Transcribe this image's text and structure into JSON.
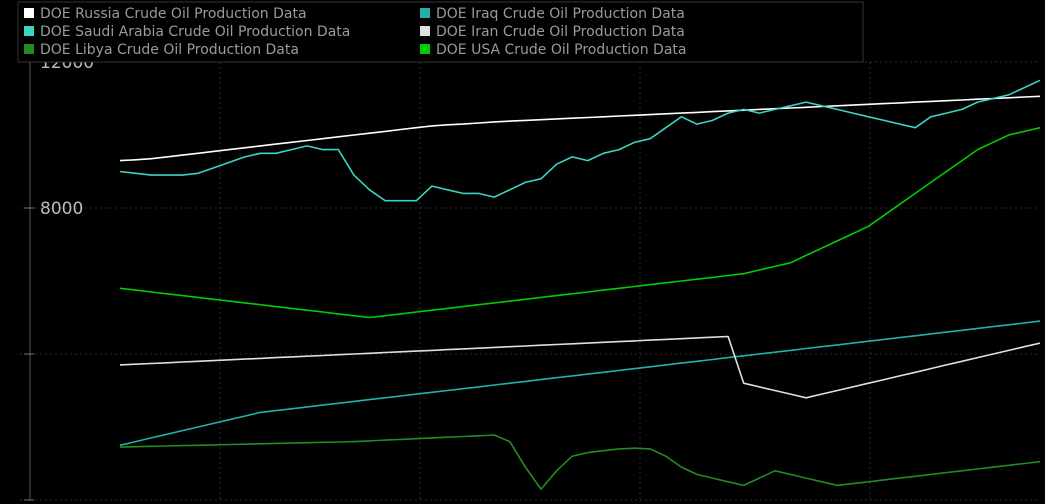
{
  "chart_data": {
    "type": "line",
    "legend_position": "top-left",
    "grid": true,
    "title": "",
    "xlabel": "",
    "ylabel": "",
    "ylim": [
      0,
      12000
    ],
    "y_ticks": [
      0,
      4000,
      8000,
      12000
    ],
    "y_tick_labels": [
      "",
      "",
      "8000",
      "12000"
    ],
    "x_count": 60,
    "series": [
      {
        "name": "DOE Russia Crude Oil Production Data",
        "color": "#ffffff",
        "values": [
          9300,
          9320,
          9350,
          9400,
          9450,
          9500,
          9550,
          9600,
          9650,
          9700,
          9750,
          9800,
          9850,
          9900,
          9950,
          10000,
          10050,
          10100,
          10150,
          10200,
          10250,
          10280,
          10300,
          10330,
          10360,
          10380,
          10400,
          10420,
          10440,
          10460,
          10480,
          10500,
          10520,
          10540,
          10560,
          10580,
          10600,
          10620,
          10640,
          10660,
          10680,
          10700,
          10720,
          10740,
          10760,
          10780,
          10800,
          10820,
          10840,
          10860,
          10880,
          10900,
          10920,
          10940,
          10960,
          10980,
          11000,
          11020,
          11040,
          11060
        ]
      },
      {
        "name": "DOE Iraq Crude Oil Production Data",
        "color": "#20b2aa",
        "values": [
          1500,
          1600,
          1700,
          1800,
          1900,
          2000,
          2100,
          2200,
          2300,
          2400,
          2450,
          2500,
          2550,
          2600,
          2650,
          2700,
          2750,
          2800,
          2850,
          2900,
          2950,
          3000,
          3050,
          3100,
          3150,
          3200,
          3250,
          3300,
          3350,
          3400,
          3450,
          3500,
          3550,
          3600,
          3650,
          3700,
          3750,
          3800,
          3850,
          3900,
          3950,
          4000,
          4050,
          4100,
          4150,
          4200,
          4250,
          4300,
          4350,
          4400,
          4450,
          4500,
          4550,
          4600,
          4650,
          4700,
          4750,
          4800,
          4850,
          4900
        ]
      },
      {
        "name": "DOE Iran Crude Oil Production Data",
        "color": "#e0e0e0",
        "values": [
          3700,
          3720,
          3740,
          3760,
          3780,
          3800,
          3820,
          3840,
          3860,
          3880,
          3900,
          3920,
          3940,
          3960,
          3980,
          4000,
          4020,
          4040,
          4060,
          4080,
          4100,
          4120,
          4140,
          4160,
          4180,
          4200,
          4220,
          4240,
          4260,
          4280,
          4300,
          4320,
          4340,
          4360,
          4380,
          4400,
          4420,
          4440,
          4460,
          4480,
          3200,
          3100,
          3000,
          2900,
          2800,
          2900,
          3000,
          3100,
          3200,
          3300,
          3400,
          3500,
          3600,
          3700,
          3800,
          3900,
          4000,
          4100,
          4200,
          4300
        ]
      },
      {
        "name": "DOE Saudi Arabia Crude Oil Production Data",
        "color": "#3ad4c4",
        "values": [
          9000,
          8950,
          8900,
          8900,
          8900,
          8950,
          9100,
          9250,
          9400,
          9500,
          9500,
          9600,
          9700,
          9600,
          9600,
          8900,
          8500,
          8200,
          8200,
          8200,
          8600,
          8500,
          8400,
          8400,
          8300,
          8500,
          8700,
          8800,
          9200,
          9400,
          9300,
          9500,
          9600,
          9800,
          9900,
          10200,
          10500,
          10300,
          10400,
          10600,
          10700,
          10600,
          10700,
          10800,
          10900,
          10800,
          10700,
          10600,
          10500,
          10400,
          10300,
          10200,
          10500,
          10600,
          10700,
          10900,
          11000,
          11100,
          11300,
          11500
        ]
      },
      {
        "name": "DOE USA Crude Oil Production Data",
        "color": "#00cc00",
        "values": [
          5800,
          5750,
          5700,
          5650,
          5600,
          5550,
          5500,
          5450,
          5400,
          5350,
          5300,
          5250,
          5200,
          5150,
          5100,
          5050,
          5000,
          5050,
          5100,
          5150,
          5200,
          5250,
          5300,
          5350,
          5400,
          5450,
          5500,
          5550,
          5600,
          5650,
          5700,
          5750,
          5800,
          5850,
          5900,
          5950,
          6000,
          6050,
          6100,
          6150,
          6200,
          6300,
          6400,
          6500,
          6700,
          6900,
          7100,
          7300,
          7500,
          7800,
          8100,
          8400,
          8700,
          9000,
          9300,
          9600,
          9800,
          10000,
          10100,
          10200
        ]
      },
      {
        "name": "DOE Libya Crude Oil Production Data",
        "color": "#228b22",
        "values": [
          1450,
          1460,
          1470,
          1480,
          1490,
          1500,
          1510,
          1520,
          1530,
          1540,
          1550,
          1560,
          1570,
          1580,
          1590,
          1600,
          1620,
          1640,
          1660,
          1680,
          1700,
          1720,
          1740,
          1760,
          1780,
          1600,
          900,
          300,
          800,
          1200,
          1300,
          1350,
          1400,
          1420,
          1400,
          1200,
          900,
          700,
          600,
          500,
          400,
          600,
          800,
          700,
          600,
          500,
          400,
          450,
          500,
          550,
          600,
          650,
          700,
          750,
          800,
          850,
          900,
          950,
          1000,
          1050
        ]
      }
    ]
  }
}
